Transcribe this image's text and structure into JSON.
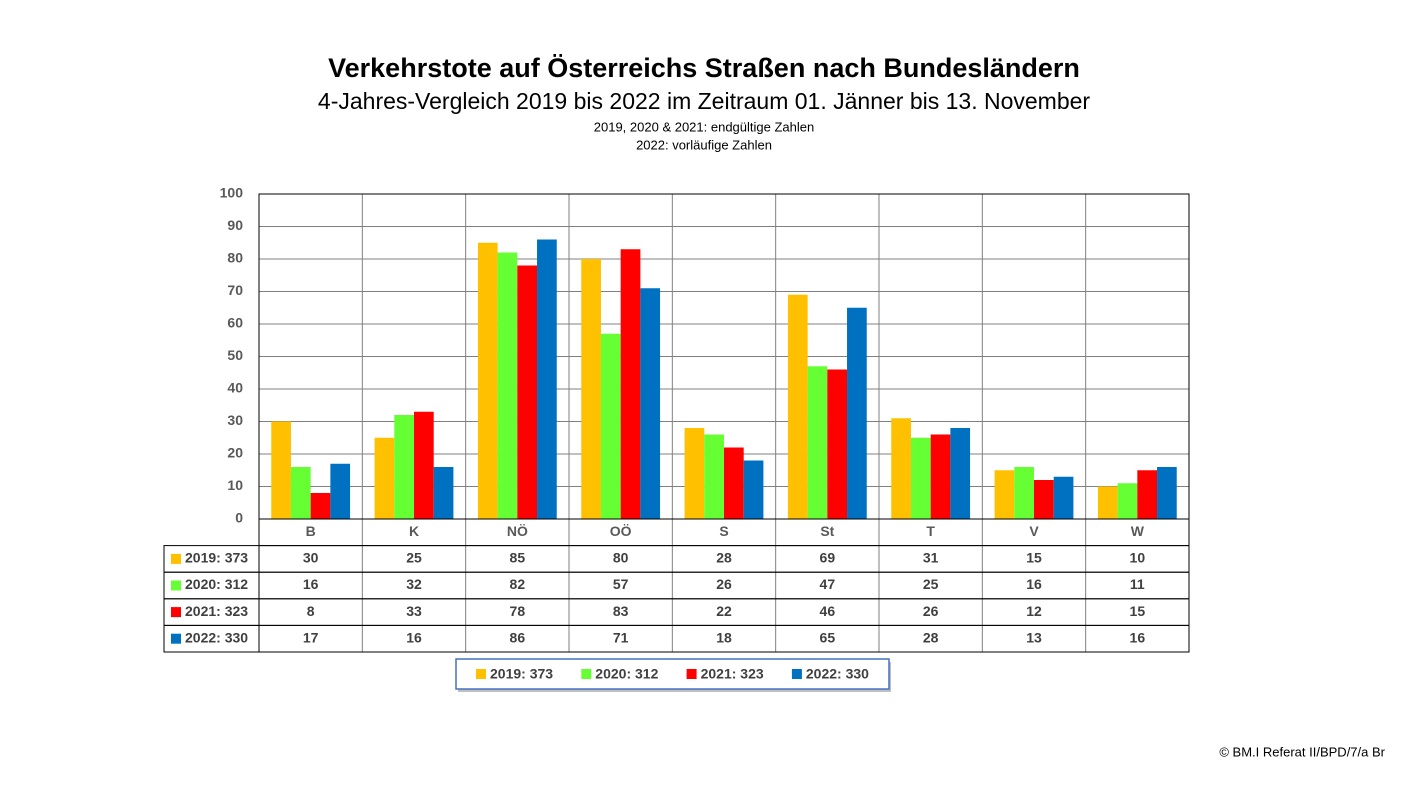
{
  "chart_data": {
    "type": "bar",
    "title": "Verkehrstote auf Österreichs Straßen nach Bundesländern",
    "subtitle": "4-Jahres-Vergleich 2019 bis 2022 im Zeitraum 01. Jänner bis 13. November",
    "notes": [
      "2019, 2020 & 2021: endgültige Zahlen",
      "2022: vorläufige Zahlen"
    ],
    "categories": [
      "B",
      "K",
      "NÖ",
      "OÖ",
      "S",
      "St",
      "T",
      "V",
      "W"
    ],
    "series": [
      {
        "name": "2019: 373",
        "color": "#ffc000",
        "values": [
          30,
          25,
          85,
          80,
          28,
          69,
          31,
          15,
          10
        ]
      },
      {
        "name": "2020: 312",
        "color": "#66ff33",
        "values": [
          16,
          32,
          82,
          57,
          26,
          47,
          25,
          16,
          11
        ]
      },
      {
        "name": "2021: 323",
        "color": "#ff0000",
        "values": [
          8,
          33,
          78,
          83,
          22,
          46,
          26,
          12,
          15
        ]
      },
      {
        "name": "2022: 330",
        "color": "#0070c0",
        "values": [
          17,
          16,
          86,
          71,
          18,
          65,
          28,
          13,
          16
        ]
      }
    ],
    "ylim": [
      0,
      100
    ],
    "yticks": [
      0,
      10,
      20,
      30,
      40,
      50,
      60,
      70,
      80,
      90,
      100
    ],
    "grid": true,
    "footer": "© BM.I Referat II/BPD/7/a Br"
  }
}
